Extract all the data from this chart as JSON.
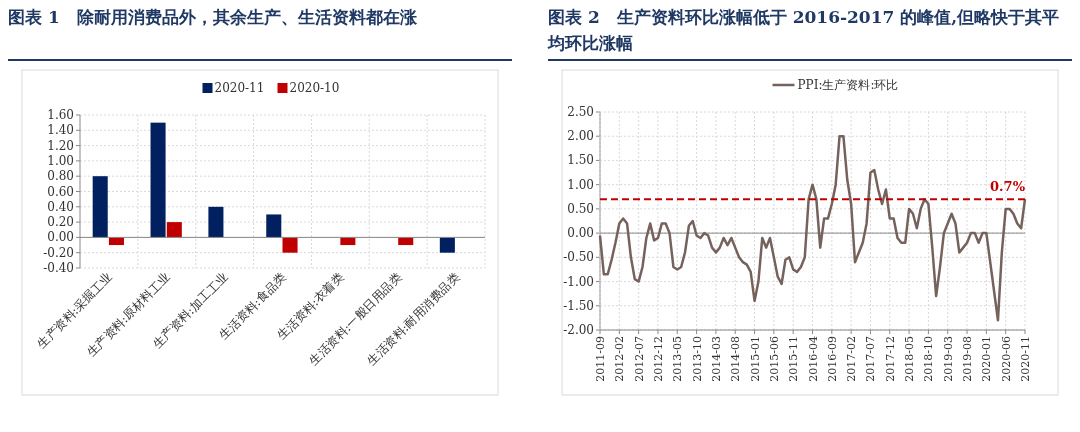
{
  "chart_data": [
    {
      "type": "bar",
      "title": "图表 1　除耐用消费品外，其余生产、生活资料都在涨",
      "categories": [
        "生产资料:采掘工业",
        "生产资料:原材料工业",
        "生产资料:加工工业",
        "生活资料:食品类",
        "生活资料:衣着类",
        "生活资料:一般日用品类",
        "生活资料:耐用消费品类"
      ],
      "series": [
        {
          "name": "2020-11",
          "color": "#002060",
          "values": [
            0.8,
            1.5,
            0.4,
            0.3,
            0,
            0,
            -0.2
          ]
        },
        {
          "name": "2020-10",
          "color": "#c00000",
          "values": [
            -0.1,
            0.2,
            0,
            -0.2,
            -0.1,
            -0.1,
            0
          ]
        }
      ],
      "ylim": [
        -0.4,
        1.6
      ],
      "yticks": [
        {
          "value": -0.4,
          "label": "-0.40"
        },
        {
          "value": -0.2,
          "label": "-0.20"
        },
        {
          "value": 0,
          "label": "0.00"
        },
        {
          "value": 0.2,
          "label": "0.20"
        },
        {
          "value": 0.4,
          "label": "0.40"
        },
        {
          "value": 0.6,
          "label": "0.60"
        },
        {
          "value": 0.8,
          "label": "0.80"
        },
        {
          "value": 1,
          "label": "1.00"
        },
        {
          "value": 1.2,
          "label": "1.20"
        },
        {
          "value": 1.4,
          "label": "1.40"
        },
        {
          "value": 1.6,
          "label": "1.60"
        }
      ],
      "grid": true,
      "legend": "top"
    },
    {
      "type": "line",
      "title": "图表 2　生产资料环比涨幅低于 2016-2017 的峰值,但略快于其平均环比涨幅",
      "series": [
        {
          "name": "PPI:生产资料:环比",
          "color": "#76625c",
          "x": [
            "2011-09",
            "2011-10",
            "2011-11",
            "2011-12",
            "2012-01",
            "2012-02",
            "2012-03",
            "2012-04",
            "2012-05",
            "2012-06",
            "2012-07",
            "2012-08",
            "2012-09",
            "2012-10",
            "2012-11",
            "2012-12",
            "2013-01",
            "2013-02",
            "2013-03",
            "2013-04",
            "2013-05",
            "2013-06",
            "2013-07",
            "2013-08",
            "2013-09",
            "2013-10",
            "2013-11",
            "2013-12",
            "2014-01",
            "2014-02",
            "2014-03",
            "2014-04",
            "2014-05",
            "2014-06",
            "2014-07",
            "2014-08",
            "2014-09",
            "2014-10",
            "2014-11",
            "2014-12",
            "2015-01",
            "2015-02",
            "2015-03",
            "2015-04",
            "2015-05",
            "2015-06",
            "2015-07",
            "2015-08",
            "2015-09",
            "2015-10",
            "2015-11",
            "2015-12",
            "2016-01",
            "2016-02",
            "2016-03",
            "2016-04",
            "2016-05",
            "2016-06",
            "2016-07",
            "2016-08",
            "2016-09",
            "2016-10",
            "2016-11",
            "2016-12",
            "2017-01",
            "2017-02",
            "2017-03",
            "2017-04",
            "2017-05",
            "2017-06",
            "2017-07",
            "2017-08",
            "2017-09",
            "2017-10",
            "2017-11",
            "2017-12",
            "2018-01",
            "2018-02",
            "2018-03",
            "2018-04",
            "2018-05",
            "2018-06",
            "2018-07",
            "2018-08",
            "2018-09",
            "2018-10",
            "2018-11",
            "2018-12",
            "2019-01",
            "2019-02",
            "2019-03",
            "2019-04",
            "2019-05",
            "2019-06",
            "2019-07",
            "2019-08",
            "2019-09",
            "2019-10",
            "2019-11",
            "2019-12",
            "2020-01",
            "2020-02",
            "2020-03",
            "2020-04",
            "2020-05",
            "2020-06",
            "2020-07",
            "2020-08",
            "2020-09",
            "2020-10",
            "2020-11"
          ],
          "values": [
            -0.05,
            -0.85,
            -0.85,
            -0.55,
            -0.2,
            0.2,
            0.3,
            0.2,
            -0.5,
            -0.95,
            -1.0,
            -0.7,
            -0.1,
            0.2,
            -0.15,
            -0.1,
            0.2,
            0.2,
            0.0,
            -0.7,
            -0.75,
            -0.7,
            -0.4,
            0.15,
            0.25,
            -0.05,
            -0.1,
            0.0,
            -0.05,
            -0.3,
            -0.4,
            -0.3,
            -0.1,
            -0.25,
            -0.1,
            -0.3,
            -0.5,
            -0.6,
            -0.65,
            -0.8,
            -1.4,
            -1.0,
            -0.1,
            -0.3,
            -0.1,
            -0.5,
            -0.9,
            -1.05,
            -0.55,
            -0.5,
            -0.75,
            -0.8,
            -0.7,
            -0.5,
            0.7,
            1.0,
            0.7,
            -0.3,
            0.3,
            0.3,
            0.6,
            1.0,
            2.0,
            2.0,
            1.1,
            0.6,
            -0.6,
            -0.4,
            -0.2,
            0.2,
            1.25,
            1.3,
            0.9,
            0.6,
            0.9,
            0.3,
            0.3,
            -0.1,
            -0.2,
            -0.2,
            0.5,
            0.4,
            0.1,
            0.5,
            0.7,
            0.6,
            -0.3,
            -1.3,
            -0.7,
            0.0,
            0.2,
            0.4,
            0.2,
            -0.4,
            -0.3,
            -0.2,
            0.0,
            0.0,
            -0.2,
            0.0,
            0.0,
            -0.6,
            -1.2,
            -1.8,
            -0.4,
            0.5,
            0.5,
            0.4,
            0.2,
            0.1,
            0.7
          ]
        }
      ],
      "xlim": [
        "2011-09",
        "2020-11"
      ],
      "xticks": [
        "2011-09",
        "2012-02",
        "2012-07",
        "2012-12",
        "2013-05",
        "2013-10",
        "2014-03",
        "2014-08",
        "2015-01",
        "2015-06",
        "2015-11",
        "2016-04",
        "2016-09",
        "2017-02",
        "2017-07",
        "2017-12",
        "2018-05",
        "2018-10",
        "2019-03",
        "2019-08",
        "2020-01",
        "2020-06",
        "2020-11"
      ],
      "ylim": [
        -2,
        2.5
      ],
      "yticks": [
        {
          "value": -2,
          "label": "-2.00"
        },
        {
          "value": -1.5,
          "label": "-1.50"
        },
        {
          "value": -1,
          "label": "-1.00"
        },
        {
          "value": -0.5,
          "label": "-0.50"
        },
        {
          "value": 0,
          "label": "0.00"
        },
        {
          "value": 0.5,
          "label": "0.50"
        },
        {
          "value": 1,
          "label": "1.00"
        },
        {
          "value": 1.5,
          "label": "1.50"
        },
        {
          "value": 2,
          "label": "2.00"
        },
        {
          "value": 2.5,
          "label": "2.50"
        }
      ],
      "grid": true,
      "legend": "top",
      "ref_lines": [
        {
          "axis": "y",
          "value": 0.7,
          "label": "0.7%",
          "color": "#c00000",
          "line_style": "dashed"
        }
      ]
    }
  ]
}
